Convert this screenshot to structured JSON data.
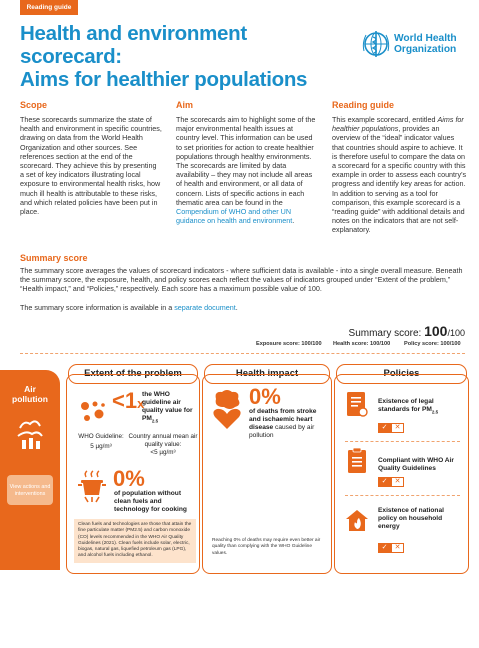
{
  "header": {
    "tag": "Reading guide",
    "title_line1": "Health and environment scorecard:",
    "title_line2": "Aims for healthier populations",
    "logo_line1": "World Health",
    "logo_line2": "Organization"
  },
  "scope": {
    "heading": "Scope",
    "text": "These scorecards summarize the state of health and environment in specific countries, drawing on data from the World Health Organization and other sources. See references section at the end of the scorecard. They achieve this by presenting a set of key indicators illustrating local exposure to environmental health risks, how much ill health is attributable to these risks, and which related policies have been put in place."
  },
  "aim": {
    "heading": "Aim",
    "text": "The scorecards aim to highlight some of the major environmental health issues at country level. This information can be used to set priorities for action to create healthier populations through healthy environments. The scorecards are limited by data availability – they may not include all areas of health and environment, or all data of concern. Lists of specific actions in each thematic area can be found in the ",
    "link": "Compendium of WHO and other UN guidance on health and environment",
    "end": "."
  },
  "guide": {
    "heading": "Reading guide",
    "pre": "This example scorecard, entitled ",
    "italic": "Aims for healthier populations",
    "post": ", provides an overview of the “ideal” indicator values that countries should aspire to achieve. It is therefore useful to compare the data on a scorecard for a specific country with this example in order to assess each country’s progress and identify key areas for action. In addition to serving as a tool for comparison, this example scorecard is a “reading guide” with additional details and notes on the indicators that are not self-explanatory."
  },
  "summary": {
    "heading": "Summary score",
    "p1": "The summary score averages the values of scorecard indicators - where sufficient data is available - into a single overall measure. Beneath the summary score, the exposure, health, and policy scores each reflect the values of indicators grouped under “Extent of the problem,” “Health impact,” and “Policies,” respectively. Each score has a maximum possible value of 100.",
    "p2_pre": "The summary score information is available in a ",
    "p2_link": "separate document",
    "p2_end": "."
  },
  "scores": {
    "summary_label": "Summary score: ",
    "summary_value": "100",
    "summary_max": "/100",
    "exposure": "Exposure score: 100/100",
    "health": "Health score: 100/100",
    "policy": "Policy score: 100/100"
  },
  "section": {
    "label": "Air pollution",
    "button": "View actions and interventions",
    "headers": [
      "Extent of the problem",
      "Health impact",
      "Policies"
    ]
  },
  "extent": {
    "lt1": "<1",
    "x": "x",
    "guideline_text": "the WHO guideline air quality value for PM",
    "pm_sub": "2.5",
    "who_label": "WHO Guideline:",
    "who_value": "5 µg/m³",
    "country_label": "Country annual mean air quality value:",
    "country_value": "<5 µg/m³",
    "zero_pct": "0%",
    "fuels_text": "of population without clean fuels and technology for cooking",
    "note": "Clean fuels and technologies are those that attain the fine particulate matter (PM2.5) and carbon monoxide (CO) levels recommended in the WHO Air Quality Guidelines (2021). Clean fuels include solar, electric, biogas, natural gas, liquefied petroleum gas (LPG), and alcohol fuels including ethanol."
  },
  "health": {
    "zero_pct": "0%",
    "text_bold": "of deaths from stroke and ischaemic heart disease",
    "text_rest": "caused by air pollution",
    "note": "Reaching 0% of deaths may require even better air quality than complying with the WHO Guideline values."
  },
  "policies": [
    {
      "label": "Existence of legal standards for PM",
      "sub": "2.5"
    },
    {
      "label": "Compliant with WHO Air Quality Guidelines",
      "sub": ""
    },
    {
      "label": "Existence of national policy on household energy",
      "sub": ""
    }
  ],
  "colors": {
    "accent": "#e8681c",
    "blue": "#1a8fc9",
    "note_bg": "#fde3cc"
  }
}
